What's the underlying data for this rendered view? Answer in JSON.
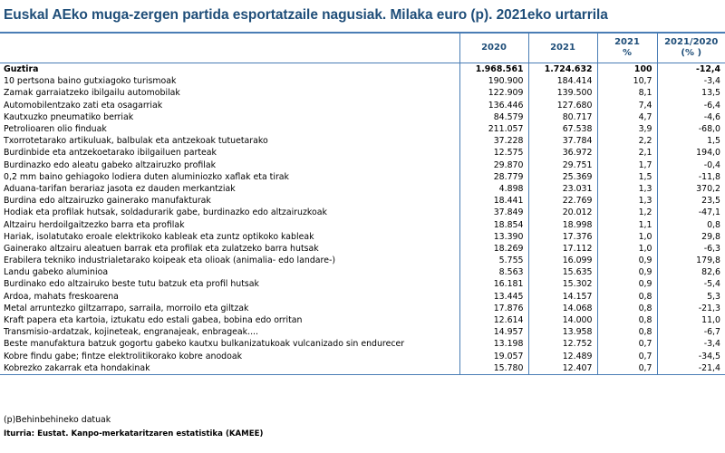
{
  "title": "Euskal AEko muga-zergen partida esportatzaile nagusiak. Milaka euro (p). 2021eko urtarrila",
  "header": {
    "col_2020": "2020",
    "col_2021": "2021",
    "col_pct_line1": "2021",
    "col_pct_line2": "%",
    "col_change_line1": "2021/2020",
    "col_change_line2": "(% )"
  },
  "rows": [
    {
      "label": "Guztira",
      "v2020": "1.968.561",
      "v2021": "1.724.632",
      "pct": "100",
      "change": "-12,4"
    },
    {
      "label": "10 pertsona baino gutxiagoko turismoak",
      "v2020": "190.900",
      "v2021": "184.414",
      "pct": "10,7",
      "change": "-3,4"
    },
    {
      "label": "Zamak garraiatzeko ibilgailu automobilak",
      "v2020": "122.909",
      "v2021": "139.500",
      "pct": "8,1",
      "change": "13,5"
    },
    {
      "label": "Automobilentzako zati eta osagarriak",
      "v2020": "136.446",
      "v2021": "127.680",
      "pct": "7,4",
      "change": "-6,4"
    },
    {
      "label": "Kautxuzko pneumatiko berriak",
      "v2020": "84.579",
      "v2021": "80.717",
      "pct": "4,7",
      "change": "-4,6"
    },
    {
      "label": "Petrolioaren olio finduak",
      "v2020": "211.057",
      "v2021": "67.538",
      "pct": "3,9",
      "change": "-68,0"
    },
    {
      "label": "Txorrotetarako artikuluak, balbulak eta antzekoak tutuetarako",
      "v2020": "37.228",
      "v2021": "37.784",
      "pct": "2,2",
      "change": "1,5"
    },
    {
      "label": "Burdinbide eta antzekoetarako ibilgailuen parteak",
      "v2020": "12.575",
      "v2021": "36.972",
      "pct": "2,1",
      "change": "194,0"
    },
    {
      "label": "Burdinazko edo aleatu gabeko altzairuzko profilak",
      "v2020": "29.870",
      "v2021": "29.751",
      "pct": "1,7",
      "change": "-0,4"
    },
    {
      "label": "0,2 mm baino gehiagoko lodiera duten aluminiozko xaflak eta tirak",
      "v2020": "28.779",
      "v2021": "25.369",
      "pct": "1,5",
      "change": "-11,8"
    },
    {
      "label": "Aduana-tarifan berariaz jasota ez dauden merkantziak",
      "v2020": "4.898",
      "v2021": "23.031",
      "pct": "1,3",
      "change": "370,2"
    },
    {
      "label": "Burdina edo altzairuzko gainerako manufakturak",
      "v2020": "18.441",
      "v2021": "22.769",
      "pct": "1,3",
      "change": "23,5"
    },
    {
      "label": "Hodiak eta profilak hutsak, soldadurarik gabe, burdinazko edo altzairuzkoak",
      "v2020": "37.849",
      "v2021": "20.012",
      "pct": "1,2",
      "change": "-47,1"
    },
    {
      "label": "Altzairu herdoilgaitzezko barra eta profilak",
      "v2020": "18.854",
      "v2021": "18.998",
      "pct": "1,1",
      "change": "0,8"
    },
    {
      "label": "Hariak, isolatutako eroale elektrikoko kableak eta zuntz optikoko kableak",
      "v2020": "13.390",
      "v2021": "17.376",
      "pct": "1,0",
      "change": "29,8"
    },
    {
      "label": "Gainerako altzairu aleatuen barrak eta profilak eta zulatzeko barra hutsak",
      "v2020": "18.269",
      "v2021": "17.112",
      "pct": "1,0",
      "change": "-6,3"
    },
    {
      "label": "Erabilera tekniko industrialetarako koipeak eta olioak (animalia- edo landare-)",
      "v2020": "5.755",
      "v2021": "16.099",
      "pct": "0,9",
      "change": "179,8"
    },
    {
      "label": "Landu gabeko aluminioa",
      "v2020": "8.563",
      "v2021": "15.635",
      "pct": "0,9",
      "change": "82,6"
    },
    {
      "label": "Burdinako edo altzairuko beste tutu batzuk eta profil hutsak",
      "v2020": "16.181",
      "v2021": "15.302",
      "pct": "0,9",
      "change": "-5,4"
    },
    {
      "label": "Ardoa, mahats freskoarena",
      "v2020": "13.445",
      "v2021": "14.157",
      "pct": "0,8",
      "change": "5,3"
    },
    {
      "label": "Metal arruntezko giltzarrapo, sarraila, morroilo eta giltzak",
      "v2020": "17.876",
      "v2021": "14.068",
      "pct": "0,8",
      "change": "-21,3"
    },
    {
      "label": "Kraft papera eta kartoia, iztukatu edo estali gabea, bobina edo orritan",
      "v2020": "12.614",
      "v2021": "14.000",
      "pct": "0,8",
      "change": "11,0"
    },
    {
      "label": "Transmisio-ardatzak, kojineteak, engranajeak, enbrageak....",
      "v2020": "14.957",
      "v2021": "13.958",
      "pct": "0,8",
      "change": "-6,7"
    },
    {
      "label": "Beste manufaktura batzuk gogortu gabeko kautxu bulkanizatukoak vulcanizado sin endurecer",
      "v2020": "13.198",
      "v2021": "12.752",
      "pct": "0,7",
      "change": "-3,4"
    },
    {
      "label": "Kobre findu gabe; fintze elektrolitikorako kobre anodoak",
      "v2020": "19.057",
      "v2021": "12.489",
      "pct": "0,7",
      "change": "-34,5"
    },
    {
      "label": "Kobrezko zakarrak eta hondakinak",
      "v2020": "15.780",
      "v2021": "12.407",
      "pct": "0,7",
      "change": "-21,4"
    }
  ],
  "footnote": "(p)Behinbehineko datuak",
  "source": "Iturria: Eustat. Kanpo-merkataritzaren estatistika (KAMEE)"
}
